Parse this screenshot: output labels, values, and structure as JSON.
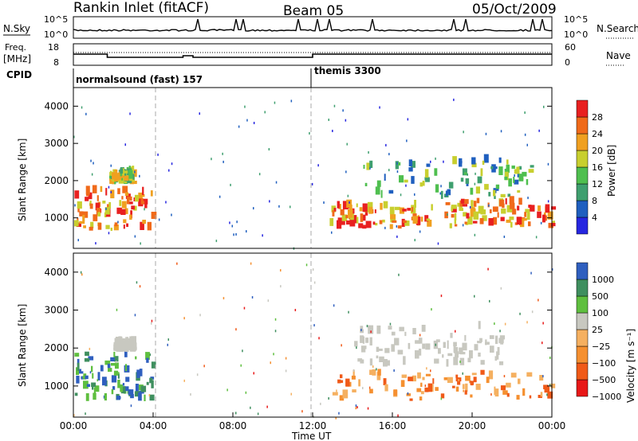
{
  "header": {
    "station": "Rankin Inlet (fitACF)",
    "beam": "Beam 05",
    "date": "05/Oct/2009"
  },
  "panels": {
    "nsky": {
      "label": "N.Sky",
      "ticks": [
        "10^5",
        "10^0"
      ],
      "right_label": "N.Search",
      "right_ticks": [
        "10^5",
        "10^0"
      ]
    },
    "freq": {
      "label_line1": "Freq.",
      "label_line2": "[MHz]",
      "ticks": [
        "18",
        "8"
      ],
      "right_label": "Nave",
      "right_ticks": [
        "60",
        "0"
      ]
    },
    "cpid": {
      "label": "CPID",
      "mode1": "normalsound (fast) 157",
      "mode2": "themis 3300"
    }
  },
  "colors": {
    "power": [
      "#2626e0",
      "#1f5fbf",
      "#3f9f6f",
      "#4fbf4f",
      "#c8cf2f",
      "#f0a020",
      "#f06a1a",
      "#e82020"
    ],
    "velocity": [
      "#e81818",
      "#f05a18",
      "#f59030",
      "#f5b060",
      "#c8c8c0",
      "#5fbf3f",
      "#3f8f5f",
      "#2f5fbf"
    ]
  },
  "chart_data": [
    {
      "type": "heatmap",
      "ylabel": "Slant Range [km]",
      "xlabel": "Time UT",
      "x_ticks": [
        "00:00",
        "04:00",
        "08:00",
        "12:00",
        "16:00",
        "20:00",
        "00:00"
      ],
      "y_ticks": [
        "1000",
        "2000",
        "3000",
        "4000"
      ],
      "ylim": [
        180,
        4500
      ],
      "colorbar": {
        "label": "Power [dB]",
        "ticks": [
          "4",
          "8",
          "12",
          "16",
          "20",
          "24",
          "28"
        ],
        "range": [
          0,
          30
        ]
      },
      "series": [
        {
          "name": "Power",
          "note": "",
          "regions": [
            {
              "t": [
                0,
                4
              ],
              "r": [
                650,
                1700
              ],
              "level": 26
            },
            {
              "t": [
                1.8,
                3
              ],
              "r": [
                1900,
                2200
              ],
              "level": 18
            },
            {
              "t": [
                12.8,
                18
              ],
              "r": [
                700,
                1300
              ],
              "level": 24
            },
            {
              "t": [
                14.5,
                23
              ],
              "r": [
                1500,
                2500
              ],
              "level": 14
            },
            {
              "t": [
                18.5,
                24
              ],
              "r": [
                700,
                1400
              ],
              "level": 24
            }
          ]
        }
      ]
    },
    {
      "type": "heatmap",
      "ylabel": "Slant Range [km]",
      "xlabel": "Time UT",
      "x_ticks": [
        "00:00",
        "04:00",
        "08:00",
        "12:00",
        "16:00",
        "20:00",
        "00:00"
      ],
      "y_ticks": [
        "1000",
        "2000",
        "3000",
        "4000"
      ],
      "ylim": [
        180,
        4500
      ],
      "colorbar": {
        "label": "Velocity [m s⁻¹]",
        "ticks": [
          "1000",
          "500",
          "100",
          "25",
          "−25",
          "−100",
          "−500",
          "−1000"
        ]
      },
      "series": [
        {
          "name": "Velocity",
          "regions": [
            {
              "t": [
                0,
                4
              ],
              "r": [
                600,
                1800
              ],
              "level": "green"
            },
            {
              "t": [
                2,
                3
              ],
              "r": [
                1900,
                2100
              ],
              "level": "grey"
            },
            {
              "t": [
                12.8,
                24
              ],
              "r": [
                600,
                1300
              ],
              "level": "orange"
            },
            {
              "t": [
                14,
                21.5
              ],
              "r": [
                1500,
                2500
              ],
              "level": "grey"
            }
          ]
        }
      ]
    }
  ]
}
